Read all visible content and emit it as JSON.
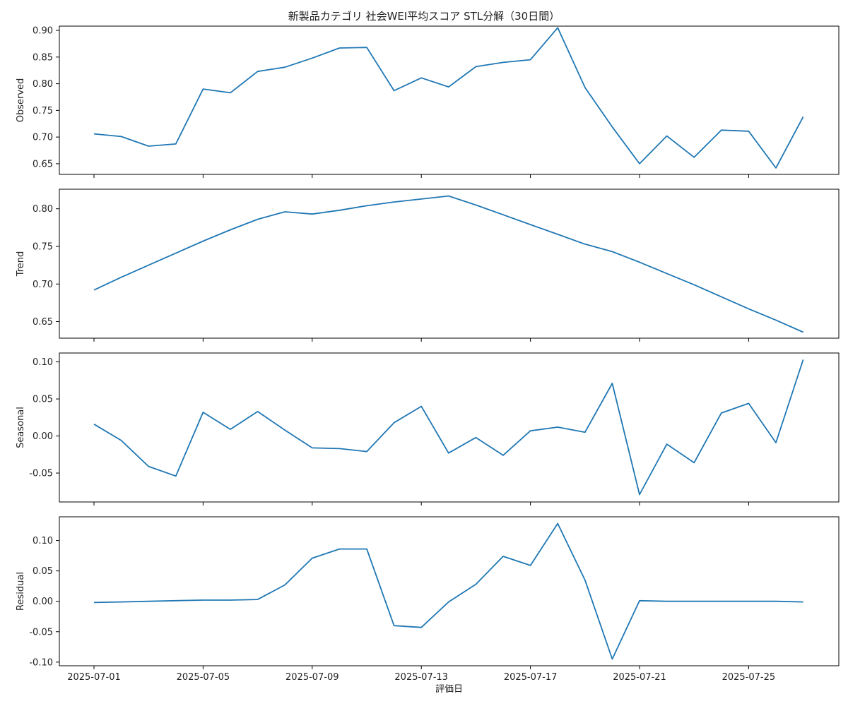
{
  "chart_data": {
    "type": "line",
    "title": "新製品カテゴリ 社会WEI平均スコア STL分解（30日間）",
    "xlabel": "評価日",
    "x": [
      "2025-07-01",
      "2025-07-02",
      "2025-07-03",
      "2025-07-04",
      "2025-07-05",
      "2025-07-06",
      "2025-07-07",
      "2025-07-08",
      "2025-07-09",
      "2025-07-10",
      "2025-07-11",
      "2025-07-12",
      "2025-07-13",
      "2025-07-14",
      "2025-07-15",
      "2025-07-16",
      "2025-07-17",
      "2025-07-18",
      "2025-07-19",
      "2025-07-20",
      "2025-07-21",
      "2025-07-22",
      "2025-07-23",
      "2025-07-24",
      "2025-07-25",
      "2025-07-26",
      "2025-07-27"
    ],
    "x_ticks": [
      "2025-07-01",
      "2025-07-05",
      "2025-07-09",
      "2025-07-13",
      "2025-07-17",
      "2025-07-21",
      "2025-07-25"
    ],
    "line_color": "#1f77b4",
    "panels": [
      {
        "ylabel": "Observed",
        "ylim": [
          0.63,
          0.908
        ],
        "yticks": [
          "0.65",
          "0.70",
          "0.75",
          "0.80",
          "0.85",
          "0.90"
        ],
        "values": [
          0.706,
          0.701,
          0.683,
          0.687,
          0.79,
          0.783,
          0.823,
          0.831,
          0.848,
          0.867,
          0.868,
          0.787,
          0.811,
          0.794,
          0.832,
          0.84,
          0.845,
          0.905,
          0.793,
          0.719,
          0.65,
          0.702,
          0.662,
          0.713,
          0.711,
          0.642,
          0.738
        ]
      },
      {
        "ylabel": "Trend",
        "ylim": [
          0.628,
          0.826
        ],
        "yticks": [
          "0.65",
          "0.70",
          "0.75",
          "0.80"
        ],
        "values": [
          0.692,
          0.709,
          0.725,
          0.741,
          0.757,
          0.772,
          0.786,
          0.796,
          0.793,
          0.798,
          0.804,
          0.809,
          0.813,
          0.817,
          0.805,
          0.792,
          0.779,
          0.766,
          0.753,
          0.743,
          0.729,
          0.714,
          0.699,
          0.683,
          0.667,
          0.652,
          0.636
        ]
      },
      {
        "ylabel": "Seasonal",
        "ylim": [
          -0.089,
          0.112
        ],
        "yticks": [
          "-0.05",
          "0.00",
          "0.05",
          "0.10"
        ],
        "values": [
          0.016,
          -0.006,
          -0.041,
          -0.054,
          0.032,
          0.009,
          0.033,
          0.008,
          -0.016,
          -0.017,
          -0.021,
          0.018,
          0.04,
          -0.023,
          -0.002,
          -0.026,
          0.007,
          0.012,
          0.005,
          0.071,
          -0.079,
          -0.011,
          -0.036,
          0.031,
          0.044,
          -0.009,
          0.103
        ]
      },
      {
        "ylabel": "Residual",
        "ylim": [
          -0.106,
          0.139
        ],
        "yticks": [
          "-0.10",
          "-0.05",
          "0.00",
          "0.05",
          "0.10"
        ],
        "values": [
          -0.002,
          -0.001,
          0.0,
          0.001,
          0.002,
          0.002,
          0.003,
          0.027,
          0.071,
          0.086,
          0.086,
          -0.04,
          -0.043,
          -0.001,
          0.028,
          0.074,
          0.059,
          0.128,
          0.035,
          -0.095,
          0.001,
          0.0,
          0.0,
          0.0,
          0.0,
          0.0,
          -0.001
        ]
      }
    ]
  }
}
